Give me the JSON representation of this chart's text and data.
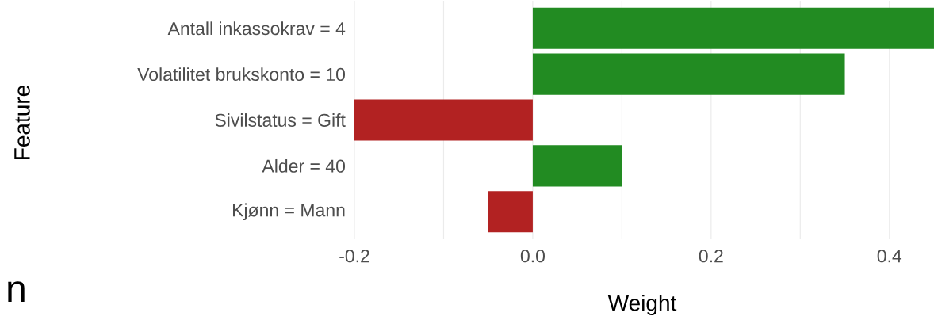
{
  "chart_data": {
    "type": "bar",
    "orientation": "horizontal",
    "xlabel": "Weight",
    "ylabel": "Feature",
    "categories": [
      "Antall inkassokrav = 4",
      "Volatilitet brukskonto = 10",
      "Sivilstatus = Gift",
      "Alder = 40",
      "Kjønn = Mann"
    ],
    "values": [
      0.45,
      0.35,
      -0.2,
      0.1,
      -0.05
    ],
    "colors": [
      "#228b22",
      "#228b22",
      "#b22222",
      "#228b22",
      "#b22222"
    ],
    "xlim": [
      -0.2,
      0.45
    ],
    "xticks": [
      -0.2,
      {
        "value": 0.0,
        "label": "0.0"
      },
      0.2,
      0.4
    ],
    "grid": "x",
    "annotations": [
      "n"
    ]
  }
}
